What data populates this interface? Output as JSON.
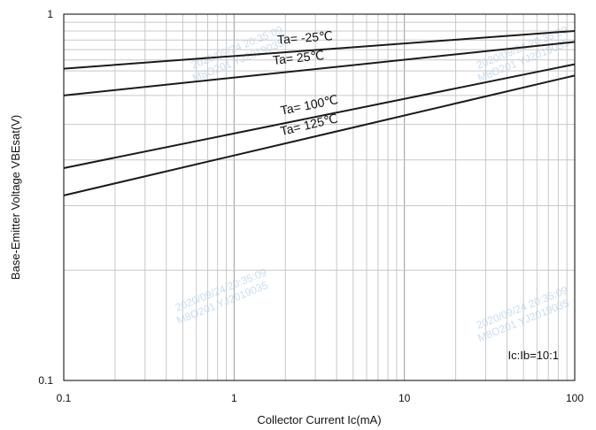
{
  "chart_data": {
    "type": "line",
    "title": "",
    "xlabel": "Collector Current   Ic(mA)",
    "ylabel": "Base-Emitter Voltage   VBEsat(V)",
    "x_scale": "log",
    "y_scale": "log",
    "xlim": [
      0.1,
      100
    ],
    "ylim": [
      0.1,
      1
    ],
    "x_ticks": [
      {
        "value": 0.1,
        "label": "0.1"
      },
      {
        "value": 1,
        "label": "1"
      },
      {
        "value": 10,
        "label": "10"
      },
      {
        "value": 100,
        "label": "100"
      }
    ],
    "y_ticks": [
      {
        "value": 0.1,
        "label": "0.1"
      },
      {
        "value": 1,
        "label": "1"
      }
    ],
    "grid": true,
    "series": [
      {
        "name": "Ta= -25℃",
        "x": [
          0.1,
          100
        ],
        "y": [
          0.71,
          0.9
        ]
      },
      {
        "name": "Ta= 25℃",
        "x": [
          0.1,
          100
        ],
        "y": [
          0.6,
          0.84
        ]
      },
      {
        "name": "Ta= 100℃",
        "x": [
          0.1,
          100
        ],
        "y": [
          0.38,
          0.73
        ]
      },
      {
        "name": "Ta= 125℃",
        "x": [
          0.1,
          100
        ],
        "y": [
          0.32,
          0.68
        ]
      }
    ],
    "annotations": [
      {
        "text": "Ic:Ib=10:1"
      }
    ],
    "watermarks": [
      {
        "line1": "2020/09/24  20:35:09",
        "line2": "M8O201  YJ2019035"
      },
      {
        "line1": "2020/09/24  20:35:09",
        "line2": "M8O201  YJ2019035"
      },
      {
        "line1": "2020/09/24  20:35:09",
        "line2": "M8O201  YJ2019035"
      },
      {
        "line1": "2020/09/24  20:35:09",
        "line2": "M8O201  YJ2019035"
      }
    ],
    "colors": {
      "line": "#1a1a1a",
      "grid": "#c8c8c8",
      "frame": "#000000",
      "watermark": "#9cc3ea"
    }
  }
}
